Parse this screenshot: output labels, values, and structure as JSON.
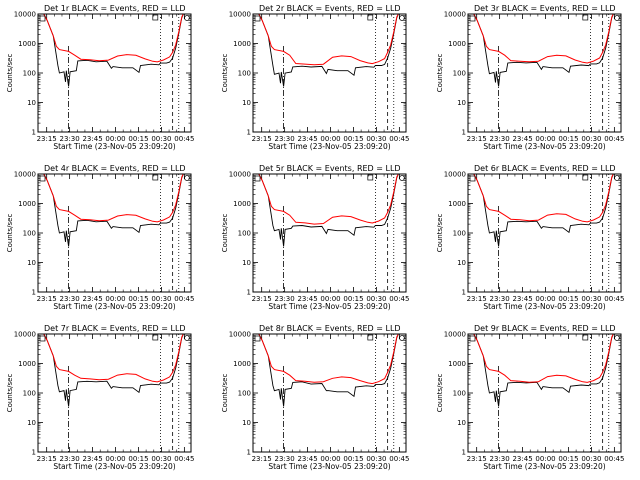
{
  "colors": {
    "events": "#000000",
    "lld": "#ff0000",
    "axes": "#000000",
    "background": "#ffffff"
  },
  "common": {
    "xlabel": "Start Time (23-Nov-05 23:09:20)",
    "ylabel": "Counts/sec",
    "x_ticks": [
      "23:15",
      "23:30",
      "23:45",
      "00:00",
      "00:15",
      "00:30",
      "00:45"
    ],
    "x_tick_minutes": [
      5.67,
      20.67,
      35.67,
      50.67,
      65.67,
      80.67,
      95.67
    ],
    "y_ticks": [
      "1",
      "10",
      "100",
      "1000",
      "10000"
    ],
    "y_scale": "log",
    "ylim": [
      1,
      10000
    ],
    "x_range_minutes": [
      0,
      100
    ]
  },
  "chart_data": [
    {
      "type": "line",
      "title": "Det 1r BLACK = Events, RED = LLD",
      "series": [
        {
          "name": "Events",
          "color": "#000000"
        },
        {
          "name": "LLD",
          "color": "#ff0000"
        }
      ],
      "lld_plateau": [
        400,
        280,
        260,
        420,
        250
      ],
      "events_plateau": [
        100,
        270,
        240,
        150,
        180
      ],
      "vlines": {
        "dashdot": [
          20
        ],
        "dotted": [
          80,
          92
        ],
        "dashed": [
          88
        ]
      }
    },
    {
      "type": "line",
      "title": "Det 2r BLACK = Events, RED = LLD",
      "series": [
        {
          "name": "Events",
          "color": "#000000"
        },
        {
          "name": "LLD",
          "color": "#ff0000"
        }
      ],
      "lld_plateau": [
        250,
        200,
        190,
        380,
        220
      ],
      "events_plateau": [
        90,
        170,
        160,
        120,
        150
      ],
      "vlines": {
        "dashdot": [
          20
        ],
        "dotted": [
          80,
          92
        ],
        "dashed": [
          88
        ]
      }
    },
    {
      "type": "line",
      "title": "Det 3r BLACK = Events, RED = LLD",
      "series": [
        {
          "name": "Events",
          "color": "#000000"
        },
        {
          "name": "LLD",
          "color": "#ff0000"
        }
      ],
      "lld_plateau": [
        300,
        250,
        240,
        400,
        230
      ],
      "events_plateau": [
        95,
        230,
        220,
        150,
        170
      ],
      "vlines": {
        "dashdot": [
          20
        ],
        "dotted": [
          80,
          92
        ],
        "dashed": [
          88
        ]
      }
    },
    {
      "type": "line",
      "title": "Det 4r BLACK = Events, RED = LLD",
      "series": [
        {
          "name": "Events",
          "color": "#000000"
        },
        {
          "name": "LLD",
          "color": "#ff0000"
        }
      ],
      "lld_plateau": [
        400,
        280,
        260,
        420,
        250
      ],
      "events_plateau": [
        100,
        270,
        240,
        150,
        180
      ],
      "vlines": {
        "dashdot": [
          20
        ],
        "dotted": [
          80,
          92
        ],
        "dashed": [
          88
        ]
      }
    },
    {
      "type": "line",
      "title": "Det 5r BLACK = Events, RED = LLD",
      "series": [
        {
          "name": "Events",
          "color": "#000000"
        },
        {
          "name": "LLD",
          "color": "#ff0000"
        }
      ],
      "lld_plateau": [
        300,
        220,
        200,
        380,
        230
      ],
      "events_plateau": [
        120,
        180,
        160,
        120,
        150
      ],
      "vlines": {
        "dashdot": [
          20
        ],
        "dotted": [
          80,
          92
        ],
        "dashed": [
          88
        ]
      }
    },
    {
      "type": "line",
      "title": "Det 6r BLACK = Events, RED = LLD",
      "series": [
        {
          "name": "Events",
          "color": "#000000"
        },
        {
          "name": "LLD",
          "color": "#ff0000"
        }
      ],
      "lld_plateau": [
        500,
        280,
        260,
        450,
        250
      ],
      "events_plateau": [
        100,
        250,
        240,
        150,
        180
      ],
      "vlines": {
        "dashdot": [
          20
        ],
        "dotted": [
          80,
          92
        ],
        "dashed": [
          88
        ]
      }
    },
    {
      "type": "line",
      "title": "Det 7r BLACK = Events, RED = LLD",
      "series": [
        {
          "name": "Events",
          "color": "#000000"
        },
        {
          "name": "LLD",
          "color": "#ff0000"
        }
      ],
      "lld_plateau": [
        500,
        300,
        280,
        450,
        250
      ],
      "events_plateau": [
        110,
        250,
        240,
        150,
        180
      ],
      "vlines": {
        "dashdot": [
          20
        ],
        "dotted": [
          80,
          92
        ],
        "dashed": [
          88
        ]
      }
    },
    {
      "type": "line",
      "title": "Det 8r BLACK = Events, RED = LLD",
      "series": [
        {
          "name": "Events",
          "color": "#000000"
        },
        {
          "name": "LLD",
          "color": "#ff0000"
        }
      ],
      "lld_plateau": [
        300,
        250,
        230,
        350,
        220
      ],
      "events_plateau": [
        120,
        240,
        200,
        110,
        160
      ],
      "vlines": {
        "dashdot": [
          20
        ],
        "dotted": [
          80,
          92
        ],
        "dashed": [
          88
        ]
      }
    },
    {
      "type": "line",
      "title": "Det 9r BLACK = Events, RED = LLD",
      "series": [
        {
          "name": "Events",
          "color": "#000000"
        },
        {
          "name": "LLD",
          "color": "#ff0000"
        }
      ],
      "lld_plateau": [
        400,
        250,
        230,
        400,
        240
      ],
      "events_plateau": [
        100,
        230,
        220,
        150,
        170
      ],
      "vlines": {
        "dashdot": [
          20
        ],
        "dotted": [
          80,
          92
        ],
        "dashed": [
          88
        ]
      }
    }
  ]
}
